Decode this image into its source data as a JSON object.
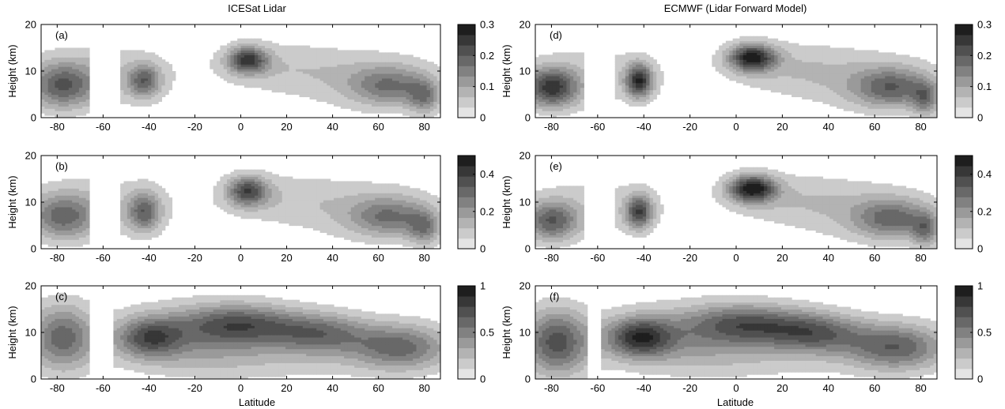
{
  "figure": {
    "column_titles": [
      "ICESat Lidar",
      "ECMWF (Lidar Forward Model)"
    ],
    "xlabel": "Latitude",
    "ylabel": "Height (km)"
  },
  "chart_data": [
    {
      "type": "heatmap",
      "panel": "(a)",
      "column": "ICESat Lidar",
      "row": 0,
      "xlabel": "",
      "ylabel": "Height (km)",
      "xlim": [
        -87,
        87
      ],
      "ylim": [
        0,
        20
      ],
      "xticks": [
        -80,
        -60,
        -40,
        -20,
        0,
        20,
        40,
        60,
        80
      ],
      "yticks": [
        0,
        10,
        20
      ],
      "data_gap_latitude": [
        -66,
        -52
      ],
      "colorbar": {
        "ticks": [
          0,
          0.1,
          0.2,
          0.3
        ],
        "max": 0.3
      },
      "features": [
        {
          "x": -78,
          "y": 7,
          "value": 0.17,
          "sx": 10,
          "sy": 3.5
        },
        {
          "x": -42,
          "y": 8,
          "value": 0.16,
          "sx": 5,
          "sy": 2.5
        },
        {
          "x": 3,
          "y": 12.5,
          "value": 0.22,
          "sx": 6,
          "sy": 2
        },
        {
          "x": 65,
          "y": 7,
          "value": 0.13,
          "sx": 12,
          "sy": 3
        },
        {
          "x": 80,
          "y": 4.5,
          "value": 0.12,
          "sx": 5,
          "sy": 2.5
        },
        {
          "x": -60,
          "y": 9,
          "value": 0.06,
          "sx": 22,
          "sy": 5
        },
        {
          "x": 15,
          "y": 11,
          "value": 0.05,
          "sx": 22,
          "sy": 4
        },
        {
          "x": 55,
          "y": 8,
          "value": 0.05,
          "sx": 25,
          "sy": 5
        }
      ]
    },
    {
      "type": "heatmap",
      "panel": "(b)",
      "column": "ICESat Lidar",
      "row": 1,
      "xlabel": "",
      "ylabel": "Height (km)",
      "xlim": [
        -87,
        87
      ],
      "ylim": [
        0,
        20
      ],
      "xticks": [
        -80,
        -60,
        -40,
        -20,
        0,
        20,
        40,
        60,
        80
      ],
      "yticks": [
        0,
        10,
        20
      ],
      "data_gap_latitude": [
        -66,
        -52
      ],
      "colorbar": {
        "ticks": [
          0,
          0.2,
          0.4
        ],
        "max": 0.5
      },
      "features": [
        {
          "x": -78,
          "y": 7,
          "value": 0.26,
          "sx": 10,
          "sy": 3.5
        },
        {
          "x": -42,
          "y": 8,
          "value": 0.27,
          "sx": 5,
          "sy": 3
        },
        {
          "x": 3,
          "y": 12.5,
          "value": 0.33,
          "sx": 6,
          "sy": 2.2
        },
        {
          "x": 65,
          "y": 7,
          "value": 0.22,
          "sx": 12,
          "sy": 3
        },
        {
          "x": 80,
          "y": 4.5,
          "value": 0.2,
          "sx": 5,
          "sy": 2.5
        },
        {
          "x": -60,
          "y": 9,
          "value": 0.09,
          "sx": 22,
          "sy": 5
        },
        {
          "x": 15,
          "y": 11,
          "value": 0.08,
          "sx": 22,
          "sy": 4
        },
        {
          "x": 55,
          "y": 8,
          "value": 0.08,
          "sx": 25,
          "sy": 5
        }
      ]
    },
    {
      "type": "heatmap",
      "panel": "(c)",
      "column": "ICESat Lidar",
      "row": 2,
      "xlabel": "Latitude",
      "ylabel": "Height (km)",
      "xlim": [
        -87,
        87
      ],
      "ylim": [
        0,
        20
      ],
      "xticks": [
        -80,
        -60,
        -40,
        -20,
        0,
        20,
        40,
        60,
        80
      ],
      "yticks": [
        0,
        10,
        20
      ],
      "data_gap_latitude": [
        -66,
        -56
      ],
      "colorbar": {
        "ticks": [
          0,
          0.5,
          1
        ],
        "max": 1
      },
      "features": [
        {
          "x": -78,
          "y": 9,
          "value": 0.6,
          "sx": 10,
          "sy": 5
        },
        {
          "x": -40,
          "y": 9,
          "value": 0.55,
          "sx": 10,
          "sy": 3
        },
        {
          "x": 0,
          "y": 12,
          "value": 0.55,
          "sx": 18,
          "sy": 3
        },
        {
          "x": 35,
          "y": 10,
          "value": 0.5,
          "sx": 15,
          "sy": 3
        },
        {
          "x": 70,
          "y": 7,
          "value": 0.55,
          "sx": 15,
          "sy": 3.5
        },
        {
          "x": -20,
          "y": 9,
          "value": 0.3,
          "sx": 25,
          "sy": 5
        },
        {
          "x": 20,
          "y": 5,
          "value": 0.15,
          "sx": 40,
          "sy": 4
        }
      ]
    },
    {
      "type": "heatmap",
      "panel": "(d)",
      "column": "ECMWF (Lidar Forward Model)",
      "row": 0,
      "xlabel": "",
      "ylabel": "Height (km)",
      "xlim": [
        -87,
        87
      ],
      "ylim": [
        0,
        20
      ],
      "xticks": [
        -80,
        -60,
        -40,
        -20,
        0,
        20,
        40,
        60,
        80
      ],
      "yticks": [
        0,
        10,
        20
      ],
      "data_gap_latitude": [
        -66,
        -52
      ],
      "colorbar": {
        "ticks": [
          0,
          0.1,
          0.2,
          0.3
        ],
        "max": 0.3
      },
      "features": [
        {
          "x": -80,
          "y": 6.5,
          "value": 0.23,
          "sx": 8,
          "sy": 3
        },
        {
          "x": -42,
          "y": 8,
          "value": 0.24,
          "sx": 4,
          "sy": 2.5
        },
        {
          "x": 7,
          "y": 13,
          "value": 0.26,
          "sx": 7,
          "sy": 2
        },
        {
          "x": 68,
          "y": 6.5,
          "value": 0.16,
          "sx": 12,
          "sy": 3
        },
        {
          "x": 82,
          "y": 4,
          "value": 0.12,
          "sx": 4,
          "sy": 2.5
        },
        {
          "x": -60,
          "y": 9,
          "value": 0.05,
          "sx": 22,
          "sy": 5
        },
        {
          "x": 20,
          "y": 11,
          "value": 0.05,
          "sx": 22,
          "sy": 4
        },
        {
          "x": 55,
          "y": 8,
          "value": 0.05,
          "sx": 25,
          "sy": 5
        }
      ]
    },
    {
      "type": "heatmap",
      "panel": "(e)",
      "column": "ECMWF (Lidar Forward Model)",
      "row": 1,
      "xlabel": "",
      "ylabel": "Height (km)",
      "xlim": [
        -87,
        87
      ],
      "ylim": [
        0,
        20
      ],
      "xticks": [
        -80,
        -60,
        -40,
        -20,
        0,
        20,
        40,
        60,
        80
      ],
      "yticks": [
        0,
        10,
        20
      ],
      "data_gap_latitude": [
        -66,
        -52
      ],
      "colorbar": {
        "ticks": [
          0,
          0.2,
          0.4
        ],
        "max": 0.5
      },
      "features": [
        {
          "x": -80,
          "y": 6,
          "value": 0.3,
          "sx": 8,
          "sy": 3
        },
        {
          "x": -42,
          "y": 8,
          "value": 0.35,
          "sx": 4,
          "sy": 2.5
        },
        {
          "x": 7,
          "y": 13,
          "value": 0.45,
          "sx": 7,
          "sy": 2
        },
        {
          "x": 68,
          "y": 6.5,
          "value": 0.25,
          "sx": 12,
          "sy": 3
        },
        {
          "x": 82,
          "y": 4,
          "value": 0.2,
          "sx": 4,
          "sy": 2.5
        },
        {
          "x": -60,
          "y": 9,
          "value": 0.08,
          "sx": 22,
          "sy": 5
        },
        {
          "x": 20,
          "y": 11,
          "value": 0.08,
          "sx": 22,
          "sy": 4
        },
        {
          "x": 55,
          "y": 8,
          "value": 0.08,
          "sx": 25,
          "sy": 5
        }
      ]
    },
    {
      "type": "heatmap",
      "panel": "(f)",
      "column": "ECMWF (Lidar Forward Model)",
      "row": 2,
      "xlabel": "Latitude",
      "ylabel": "Height (km)",
      "xlim": [
        -87,
        87
      ],
      "ylim": [
        0,
        20
      ],
      "xticks": [
        -80,
        -60,
        -40,
        -20,
        0,
        20,
        40,
        60,
        80
      ],
      "yticks": [
        0,
        10,
        20
      ],
      "data_gap_latitude": [
        -65,
        -58
      ],
      "colorbar": {
        "ticks": [
          0,
          0.5,
          1
        ],
        "max": 1
      },
      "features": [
        {
          "x": -78,
          "y": 8,
          "value": 0.7,
          "sx": 10,
          "sy": 5
        },
        {
          "x": -42,
          "y": 9,
          "value": 0.7,
          "sx": 10,
          "sy": 3
        },
        {
          "x": 5,
          "y": 12,
          "value": 0.55,
          "sx": 18,
          "sy": 3
        },
        {
          "x": 35,
          "y": 10,
          "value": 0.55,
          "sx": 15,
          "sy": 3
        },
        {
          "x": 70,
          "y": 7,
          "value": 0.6,
          "sx": 15,
          "sy": 3.5
        },
        {
          "x": -20,
          "y": 9,
          "value": 0.3,
          "sx": 25,
          "sy": 5
        },
        {
          "x": 20,
          "y": 5,
          "value": 0.12,
          "sx": 40,
          "sy": 4
        }
      ]
    }
  ]
}
